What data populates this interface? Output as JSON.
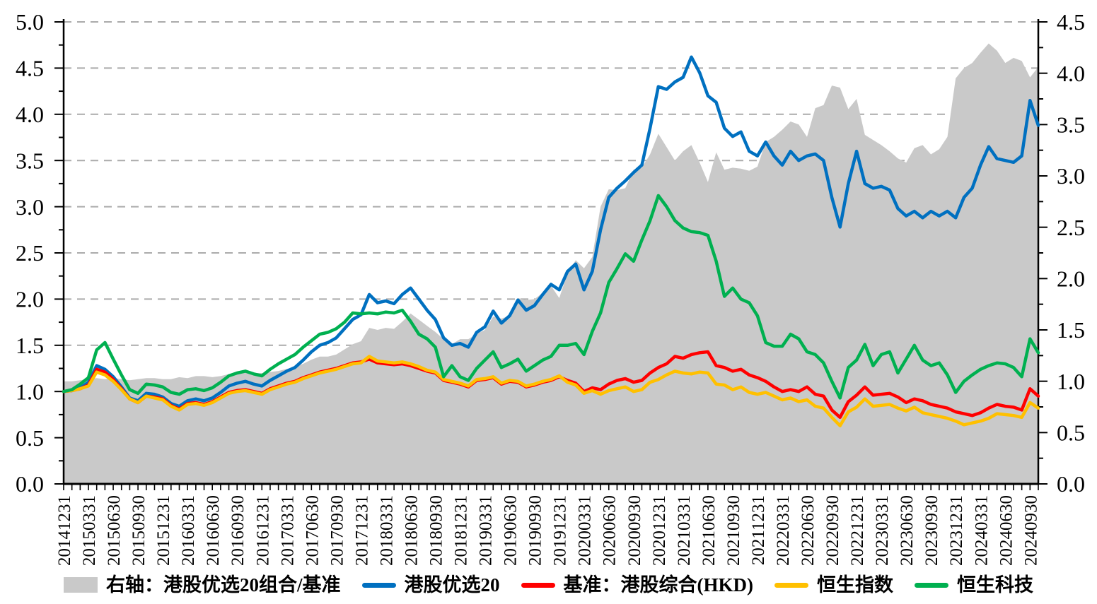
{
  "legend": {
    "items": [
      {
        "key": "ratio",
        "label": "右轴：港股优选20组合/基准",
        "color": "#C9C9C9",
        "type": "area"
      },
      {
        "key": "portfolio",
        "label": "港股优选20",
        "color": "#0070C0",
        "type": "line"
      },
      {
        "key": "benchmark",
        "label": "基准：港股综合(HKD)",
        "color": "#FF0000",
        "type": "line"
      },
      {
        "key": "hsi",
        "label": "恒生指数",
        "color": "#FFC000",
        "type": "line"
      },
      {
        "key": "hstech",
        "label": "恒生科技",
        "color": "#00B050",
        "type": "line"
      }
    ]
  },
  "chart_data": {
    "type": "combo-area-line",
    "grid": "horizontal-dashed",
    "legend_position": "bottom",
    "left_axis": {
      "min": 0,
      "max": 5,
      "step": 0.5,
      "tick_labels": [
        "0.0",
        "0.5",
        "1.0",
        "1.5",
        "2.0",
        "2.5",
        "3.0",
        "3.5",
        "4.0",
        "4.5",
        "5.0"
      ]
    },
    "right_axis": {
      "min": 0,
      "max": 4.5,
      "step": 0.5,
      "tick_labels": [
        "0.0",
        "0.5",
        "1.0",
        "1.5",
        "2.0",
        "2.5",
        "3.0",
        "3.5",
        "4.0",
        "4.5"
      ]
    },
    "x_tick_labels": [
      "20141231",
      "20150331",
      "20150630",
      "20150930",
      "20151231",
      "20160331",
      "20160630",
      "20160930",
      "20161231",
      "20170331",
      "20170630",
      "20170930",
      "20171231",
      "20180331",
      "20180630",
      "20180930",
      "20181231",
      "20190331",
      "20190630",
      "20190930",
      "20191231",
      "20200331",
      "20200630",
      "20200930",
      "20201231",
      "20210331",
      "20210630",
      "20210930",
      "20211231",
      "20220331",
      "20220630",
      "20220930",
      "20221231",
      "20230331",
      "20230630",
      "20230930",
      "20231231",
      "20240331",
      "20240630",
      "20240930"
    ],
    "x_tick_every_n_months": 3,
    "x_monthly": [
      "2014-12",
      "2015-01",
      "2015-02",
      "2015-03",
      "2015-04",
      "2015-05",
      "2015-06",
      "2015-07",
      "2015-08",
      "2015-09",
      "2015-10",
      "2015-11",
      "2015-12",
      "2016-01",
      "2016-02",
      "2016-03",
      "2016-04",
      "2016-05",
      "2016-06",
      "2016-07",
      "2016-08",
      "2016-09",
      "2016-10",
      "2016-11",
      "2016-12",
      "2017-01",
      "2017-02",
      "2017-03",
      "2017-04",
      "2017-05",
      "2017-06",
      "2017-07",
      "2017-08",
      "2017-09",
      "2017-10",
      "2017-11",
      "2017-12",
      "2018-01",
      "2018-02",
      "2018-03",
      "2018-04",
      "2018-05",
      "2018-06",
      "2018-07",
      "2018-08",
      "2018-09",
      "2018-10",
      "2018-11",
      "2018-12",
      "2019-01",
      "2019-02",
      "2019-03",
      "2019-04",
      "2019-05",
      "2019-06",
      "2019-07",
      "2019-08",
      "2019-09",
      "2019-10",
      "2019-11",
      "2019-12",
      "2020-01",
      "2020-02",
      "2020-03",
      "2020-04",
      "2020-05",
      "2020-06",
      "2020-07",
      "2020-08",
      "2020-09",
      "2020-10",
      "2020-11",
      "2020-12",
      "2021-01",
      "2021-02",
      "2021-03",
      "2021-04",
      "2021-05",
      "2021-06",
      "2021-07",
      "2021-08",
      "2021-09",
      "2021-10",
      "2021-11",
      "2021-12",
      "2022-01",
      "2022-02",
      "2022-03",
      "2022-04",
      "2022-05",
      "2022-06",
      "2022-07",
      "2022-08",
      "2022-09",
      "2022-10",
      "2022-11",
      "2022-12",
      "2023-01",
      "2023-02",
      "2023-03",
      "2023-04",
      "2023-05",
      "2023-06",
      "2023-07",
      "2023-08",
      "2023-09",
      "2023-10",
      "2023-11",
      "2023-12",
      "2024-01",
      "2024-02",
      "2024-03",
      "2024-04",
      "2024-05",
      "2024-06",
      "2024-07",
      "2024-08",
      "2024-09",
      "2024-10"
    ],
    "series": [
      {
        "key": "ratio",
        "name": "右轴：港股优选20组合/基准",
        "axis": "right",
        "type": "area",
        "color": "#C9C9C9",
        "values": [
          1.0,
          1.0,
          1.01,
          1.02,
          1.03,
          1.02,
          1.03,
          1.02,
          1.01,
          1.02,
          1.03,
          1.03,
          1.02,
          1.02,
          1.04,
          1.03,
          1.05,
          1.05,
          1.04,
          1.05,
          1.07,
          1.08,
          1.09,
          1.08,
          1.08,
          1.09,
          1.1,
          1.12,
          1.14,
          1.17,
          1.21,
          1.24,
          1.24,
          1.26,
          1.31,
          1.36,
          1.39,
          1.52,
          1.5,
          1.52,
          1.51,
          1.58,
          1.66,
          1.6,
          1.54,
          1.48,
          1.41,
          1.36,
          1.41,
          1.41,
          1.46,
          1.5,
          1.63,
          1.61,
          1.64,
          1.81,
          1.79,
          1.8,
          1.86,
          1.93,
          1.81,
          2.05,
          2.18,
          2.1,
          2.21,
          2.7,
          2.87,
          2.86,
          2.88,
          3.06,
          3.08,
          3.21,
          3.41,
          3.28,
          3.15,
          3.24,
          3.3,
          3.13,
          2.94,
          3.23,
          3.06,
          3.08,
          3.07,
          3.05,
          3.09,
          3.33,
          3.38,
          3.45,
          3.53,
          3.5,
          3.38,
          3.66,
          3.69,
          3.88,
          3.86,
          3.65,
          3.75,
          3.4,
          3.35,
          3.3,
          3.24,
          3.17,
          3.13,
          3.27,
          3.3,
          3.21,
          3.26,
          3.38,
          3.95,
          4.05,
          4.1,
          4.2,
          4.29,
          4.22,
          4.1,
          4.15,
          4.12,
          3.96,
          4.06
        ]
      },
      {
        "key": "portfolio",
        "name": "港股优选20",
        "axis": "left",
        "type": "line",
        "color": "#0070C0",
        "values": [
          1.0,
          1.01,
          1.04,
          1.1,
          1.28,
          1.24,
          1.16,
          1.05,
          0.93,
          0.9,
          0.98,
          0.97,
          0.94,
          0.87,
          0.84,
          0.9,
          0.92,
          0.9,
          0.93,
          0.99,
          1.06,
          1.09,
          1.11,
          1.08,
          1.06,
          1.12,
          1.17,
          1.22,
          1.26,
          1.34,
          1.43,
          1.5,
          1.53,
          1.58,
          1.68,
          1.78,
          1.83,
          2.05,
          1.96,
          1.98,
          1.95,
          2.05,
          2.12,
          2.0,
          1.88,
          1.78,
          1.58,
          1.5,
          1.52,
          1.48,
          1.64,
          1.7,
          1.87,
          1.74,
          1.82,
          1.99,
          1.88,
          1.93,
          2.05,
          2.16,
          2.1,
          2.3,
          2.38,
          2.1,
          2.3,
          2.75,
          3.1,
          3.2,
          3.28,
          3.37,
          3.45,
          3.85,
          4.3,
          4.27,
          4.35,
          4.4,
          4.62,
          4.45,
          4.2,
          4.13,
          3.85,
          3.76,
          3.81,
          3.6,
          3.55,
          3.7,
          3.55,
          3.45,
          3.6,
          3.5,
          3.55,
          3.57,
          3.5,
          3.1,
          2.78,
          3.25,
          3.6,
          3.25,
          3.2,
          3.22,
          3.18,
          2.98,
          2.9,
          2.95,
          2.88,
          2.95,
          2.9,
          2.95,
          2.88,
          3.1,
          3.2,
          3.45,
          3.65,
          3.52,
          3.5,
          3.48,
          3.55,
          4.15,
          3.88
        ]
      },
      {
        "key": "benchmark",
        "name": "基准：港股综合(HKD)",
        "axis": "left",
        "type": "line",
        "color": "#FF0000",
        "values": [
          1.0,
          1.01,
          1.03,
          1.07,
          1.24,
          1.21,
          1.13,
          1.03,
          0.92,
          0.88,
          0.95,
          0.94,
          0.92,
          0.85,
          0.81,
          0.87,
          0.88,
          0.86,
          0.89,
          0.94,
          0.99,
          1.01,
          1.02,
          1.0,
          0.98,
          1.03,
          1.06,
          1.09,
          1.11,
          1.15,
          1.18,
          1.21,
          1.23,
          1.25,
          1.28,
          1.31,
          1.32,
          1.35,
          1.31,
          1.3,
          1.29,
          1.3,
          1.28,
          1.25,
          1.22,
          1.2,
          1.12,
          1.1,
          1.08,
          1.05,
          1.12,
          1.13,
          1.15,
          1.08,
          1.11,
          1.1,
          1.05,
          1.07,
          1.1,
          1.12,
          1.16,
          1.12,
          1.09,
          1.0,
          1.04,
          1.02,
          1.08,
          1.12,
          1.14,
          1.1,
          1.12,
          1.2,
          1.26,
          1.3,
          1.38,
          1.36,
          1.4,
          1.42,
          1.43,
          1.28,
          1.26,
          1.22,
          1.24,
          1.18,
          1.15,
          1.11,
          1.05,
          1.0,
          1.02,
          1.0,
          1.05,
          0.97,
          0.95,
          0.8,
          0.72,
          0.89,
          0.96,
          1.05,
          0.96,
          0.97,
          0.98,
          0.94,
          0.88,
          0.92,
          0.9,
          0.86,
          0.84,
          0.82,
          0.78,
          0.76,
          0.74,
          0.77,
          0.82,
          0.86,
          0.84,
          0.83,
          0.8,
          1.03,
          0.95
        ]
      },
      {
        "key": "hsi",
        "name": "恒生指数",
        "axis": "left",
        "type": "line",
        "color": "#FFC000",
        "values": [
          1.0,
          1.01,
          1.03,
          1.06,
          1.21,
          1.18,
          1.11,
          1.02,
          0.92,
          0.88,
          0.95,
          0.93,
          0.91,
          0.84,
          0.8,
          0.86,
          0.87,
          0.85,
          0.88,
          0.93,
          0.98,
          1.0,
          1.01,
          0.99,
          0.97,
          1.02,
          1.05,
          1.08,
          1.1,
          1.14,
          1.17,
          1.2,
          1.22,
          1.24,
          1.27,
          1.3,
          1.31,
          1.38,
          1.33,
          1.32,
          1.31,
          1.32,
          1.3,
          1.27,
          1.23,
          1.21,
          1.13,
          1.11,
          1.09,
          1.06,
          1.13,
          1.14,
          1.16,
          1.09,
          1.12,
          1.11,
          1.06,
          1.08,
          1.11,
          1.13,
          1.17,
          1.1,
          1.07,
          0.98,
          1.01,
          0.97,
          1.01,
          1.03,
          1.05,
          1.0,
          1.02,
          1.1,
          1.13,
          1.18,
          1.22,
          1.2,
          1.19,
          1.21,
          1.2,
          1.08,
          1.07,
          1.02,
          1.05,
          0.99,
          0.97,
          0.99,
          0.95,
          0.91,
          0.93,
          0.89,
          0.91,
          0.84,
          0.82,
          0.72,
          0.63,
          0.78,
          0.83,
          0.92,
          0.84,
          0.85,
          0.86,
          0.82,
          0.79,
          0.83,
          0.77,
          0.75,
          0.73,
          0.71,
          0.68,
          0.64,
          0.66,
          0.68,
          0.71,
          0.76,
          0.75,
          0.74,
          0.72,
          0.88,
          0.82
        ]
      },
      {
        "key": "hstech",
        "name": "恒生科技",
        "axis": "left",
        "type": "line",
        "color": "#00B050",
        "values": [
          1.0,
          1.02,
          1.08,
          1.15,
          1.45,
          1.53,
          1.35,
          1.18,
          1.02,
          0.98,
          1.08,
          1.07,
          1.05,
          0.99,
          0.97,
          1.02,
          1.03,
          1.01,
          1.04,
          1.1,
          1.17,
          1.2,
          1.22,
          1.19,
          1.17,
          1.24,
          1.3,
          1.35,
          1.4,
          1.48,
          1.55,
          1.62,
          1.64,
          1.68,
          1.75,
          1.85,
          1.84,
          1.85,
          1.84,
          1.86,
          1.85,
          1.88,
          1.76,
          1.62,
          1.57,
          1.48,
          1.16,
          1.28,
          1.16,
          1.12,
          1.25,
          1.34,
          1.43,
          1.26,
          1.3,
          1.35,
          1.22,
          1.28,
          1.34,
          1.38,
          1.5,
          1.5,
          1.52,
          1.4,
          1.65,
          1.85,
          2.18,
          2.33,
          2.49,
          2.41,
          2.64,
          2.85,
          3.12,
          3.0,
          2.85,
          2.77,
          2.73,
          2.72,
          2.69,
          2.41,
          2.03,
          2.12,
          2.0,
          1.96,
          1.82,
          1.53,
          1.49,
          1.49,
          1.62,
          1.57,
          1.43,
          1.4,
          1.31,
          1.11,
          0.93,
          1.26,
          1.34,
          1.51,
          1.28,
          1.4,
          1.43,
          1.2,
          1.35,
          1.5,
          1.34,
          1.28,
          1.31,
          1.18,
          0.99,
          1.11,
          1.18,
          1.24,
          1.28,
          1.31,
          1.3,
          1.26,
          1.16,
          1.57,
          1.42
        ]
      }
    ]
  }
}
